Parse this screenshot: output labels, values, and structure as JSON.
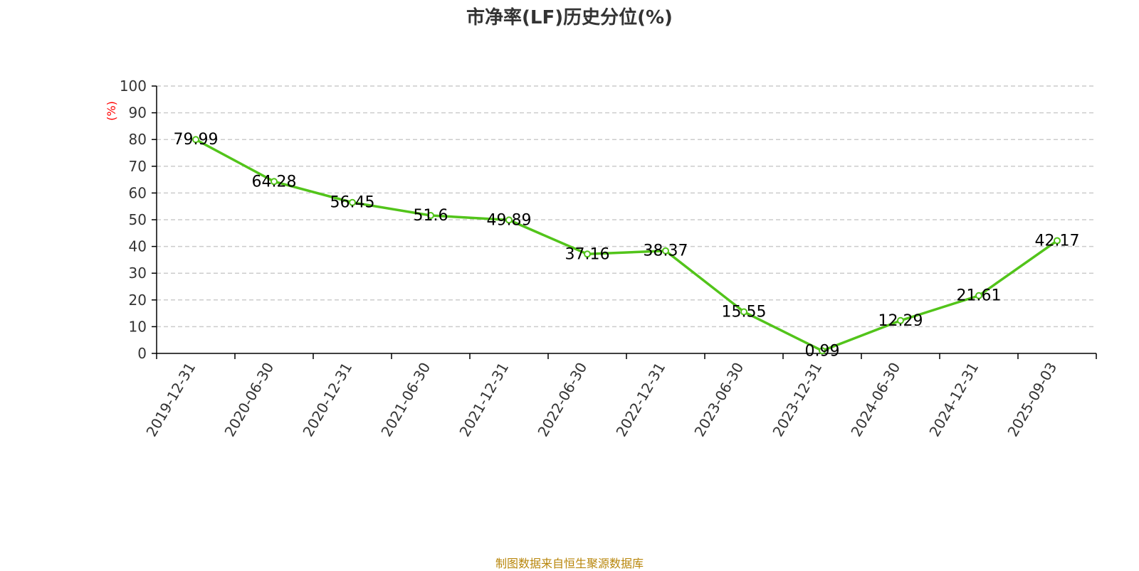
{
  "chart_data": {
    "type": "line",
    "title": "市净率(LF)历史分位(%)",
    "ylabel": "(%)",
    "xlabel": "",
    "ylim": [
      0,
      100
    ],
    "yticks": [
      0,
      10,
      20,
      30,
      40,
      50,
      60,
      70,
      80,
      90,
      100
    ],
    "grid": true,
    "categories": [
      "2019-12-31",
      "2020-06-30",
      "2020-12-31",
      "2021-06-30",
      "2021-12-31",
      "2022-06-30",
      "2022-12-31",
      "2023-06-30",
      "2023-12-31",
      "2024-06-30",
      "2024-12-31",
      "2025-09-03"
    ],
    "series": [
      {
        "values": [
          79.99,
          64.28,
          56.45,
          51.6,
          49.89,
          37.16,
          38.37,
          15.55,
          0.99,
          12.29,
          21.61,
          42.17
        ]
      }
    ]
  },
  "source_note": "制图数据来自恒生聚源数据库",
  "colors": {
    "line": "#52c41a",
    "title": "#333333",
    "axis": "#000000",
    "grid": "#cccccc",
    "ylabel": "#ff0000",
    "source": "#b8860b"
  }
}
